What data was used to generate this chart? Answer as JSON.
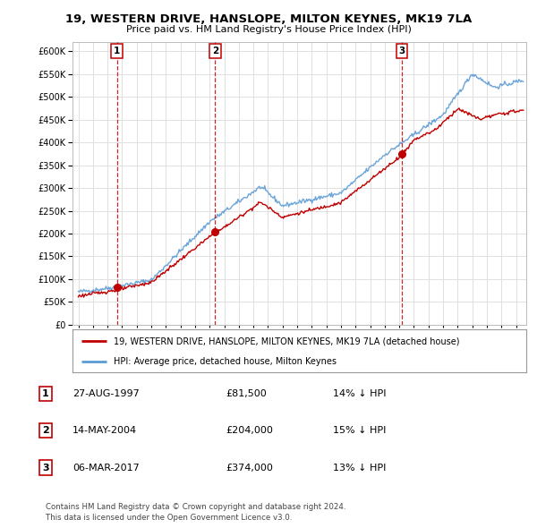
{
  "title": "19, WESTERN DRIVE, HANSLOPE, MILTON KEYNES, MK19 7LA",
  "subtitle": "Price paid vs. HM Land Registry's House Price Index (HPI)",
  "ylim": [
    0,
    620000
  ],
  "yticks": [
    0,
    50000,
    100000,
    150000,
    200000,
    250000,
    300000,
    350000,
    400000,
    450000,
    500000,
    550000,
    600000
  ],
  "sale_dates": [
    1997.65,
    2004.37,
    2017.18
  ],
  "sale_prices": [
    81500,
    204000,
    374000
  ],
  "sale_labels": [
    "1",
    "2",
    "3"
  ],
  "hpi_color": "#5b9bd5",
  "price_color": "#c00000",
  "legend_price_label": "19, WESTERN DRIVE, HANSLOPE, MILTON KEYNES, MK19 7LA (detached house)",
  "legend_hpi_label": "HPI: Average price, detached house, Milton Keynes",
  "annotation_rows": [
    {
      "num": "1",
      "date": "27-AUG-1997",
      "price": "£81,500",
      "hpi": "14% ↓ HPI"
    },
    {
      "num": "2",
      "date": "14-MAY-2004",
      "price": "£204,000",
      "hpi": "15% ↓ HPI"
    },
    {
      "num": "3",
      "date": "06-MAR-2017",
      "price": "£374,000",
      "hpi": "13% ↓ HPI"
    }
  ],
  "footnote": "Contains HM Land Registry data © Crown copyright and database right 2024.\nThis data is licensed under the Open Government Licence v3.0.",
  "background_color": "#ffffff",
  "grid_color": "#e0e0e0"
}
